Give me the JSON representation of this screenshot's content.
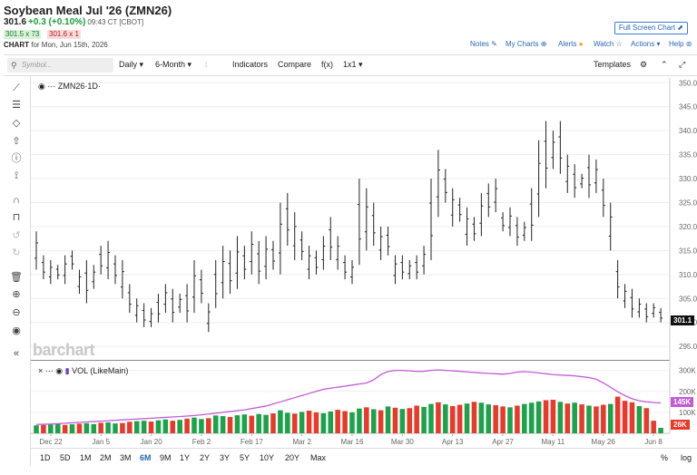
{
  "header": {
    "title": "Soybean Meal Jul '26 (ZMN26)",
    "last": "301.6",
    "change": "+0.3 (+0.10%)",
    "time": "09:43 CT [CBOT]",
    "bid": "301.5 x 73",
    "ask": "301.6 x 1",
    "chart_label": "CHART",
    "chart_date": "for Mon, Jun 15th, 2026",
    "fullscreen": "Full Screen Chart"
  },
  "header_links": {
    "notes": "Notes",
    "mycharts": "My Charts",
    "alerts": "Alerts",
    "watch": "Watch",
    "actions": "Actions",
    "help": "Help"
  },
  "toolbar": {
    "search_placeholder": "Symbol...",
    "daily": "Daily",
    "range": "6-Month",
    "indicators": "Indicators",
    "compare": "Compare",
    "fx": "f(x)",
    "layout": "1x1",
    "templates": "Templates"
  },
  "legend": {
    "symbol": "ZMN26",
    "interval": "1D",
    "volume": "VOL (LikeMain)"
  },
  "logo": "barchart",
  "price_tag": "301.1",
  "vol_tags": {
    "ma": "145K",
    "last": "26K"
  },
  "colors": {
    "up": "#1aa34a",
    "down": "#e8392b",
    "ma": "#c25ad6",
    "neutral": "#3a5fd0"
  },
  "periods": [
    "1D",
    "5D",
    "1M",
    "2M",
    "3M",
    "6M",
    "9M",
    "1Y",
    "2Y",
    "3Y",
    "5Y",
    "10Y",
    "20Y",
    "Max"
  ],
  "bottom_right": {
    "percent": "%",
    "log": "log"
  },
  "chart_data": {
    "type": "bar",
    "style": "ohlc",
    "y_ticks": [
      "350.0",
      "345.0",
      "340.0",
      "335.0",
      "330.0",
      "325.0",
      "320.0",
      "315.0",
      "310.0",
      "305.0",
      "300.0",
      "295.0"
    ],
    "ylim": [
      292,
      351
    ],
    "x_ticks": [
      "Dec 22",
      "Jan 5",
      "Jan 20",
      "Feb 2",
      "Feb 17",
      "Mar 2",
      "Mar 16",
      "Mar 30",
      "Apr 13",
      "Apr 27",
      "May 11",
      "May 26",
      "Jun 8"
    ],
    "volume_ticks": [
      "300K",
      "200K",
      "100K"
    ],
    "volume_ylim": [
      0,
      320
    ],
    "price_hl": [
      [
        319,
        311
      ],
      [
        314,
        309
      ],
      [
        313,
        308
      ],
      [
        312,
        309
      ],
      [
        314,
        308
      ],
      [
        315,
        311
      ],
      [
        311,
        306
      ],
      [
        313,
        304
      ],
      [
        312,
        307
      ],
      [
        316,
        310
      ],
      [
        317,
        309
      ],
      [
        314,
        308
      ],
      [
        313,
        305
      ],
      [
        308,
        302
      ],
      [
        305,
        300
      ],
      [
        304,
        299
      ],
      [
        303,
        299
      ],
      [
        306,
        300
      ],
      [
        308,
        302
      ],
      [
        307,
        300
      ],
      [
        306,
        302
      ],
      [
        308,
        300
      ],
      [
        313,
        302
      ],
      [
        311,
        304
      ],
      [
        304,
        298
      ],
      [
        313,
        303
      ],
      [
        316,
        305
      ],
      [
        315,
        306
      ],
      [
        318,
        307
      ],
      [
        316,
        309
      ],
      [
        319,
        310
      ],
      [
        317,
        308
      ],
      [
        318,
        309
      ],
      [
        317,
        311
      ],
      [
        325,
        310
      ],
      [
        327,
        316
      ],
      [
        323,
        313
      ],
      [
        319,
        313
      ],
      [
        316,
        309
      ],
      [
        315,
        310
      ],
      [
        318,
        311
      ],
      [
        322,
        313
      ],
      [
        318,
        311
      ],
      [
        314,
        309
      ],
      [
        313,
        308
      ],
      [
        330,
        312
      ],
      [
        328,
        315
      ],
      [
        325,
        316
      ],
      [
        320,
        313
      ],
      [
        320,
        314
      ],
      [
        314,
        308
      ],
      [
        314,
        309
      ],
      [
        313,
        309
      ],
      [
        314,
        309
      ],
      [
        316,
        310
      ],
      [
        330,
        313
      ],
      [
        336,
        322
      ],
      [
        332,
        325
      ],
      [
        328,
        320
      ],
      [
        326,
        321
      ],
      [
        324,
        316
      ],
      [
        322,
        317
      ],
      [
        327,
        318
      ],
      [
        329,
        322
      ],
      [
        330,
        323
      ],
      [
        323,
        319
      ],
      [
        324,
        318
      ],
      [
        322,
        316
      ],
      [
        321,
        317
      ],
      [
        328,
        317
      ],
      [
        338,
        322
      ],
      [
        342,
        328
      ],
      [
        340,
        332
      ],
      [
        342,
        331
      ],
      [
        335,
        327
      ],
      [
        333,
        326
      ],
      [
        331,
        328
      ],
      [
        335,
        326
      ],
      [
        334,
        327
      ],
      [
        330,
        322
      ],
      [
        325,
        315
      ],
      [
        313,
        305
      ],
      [
        308,
        303
      ],
      [
        307,
        301
      ],
      [
        305,
        301
      ],
      [
        304,
        300
      ],
      [
        304,
        301
      ],
      [
        303,
        300
      ]
    ],
    "volume": [
      38,
      40,
      42,
      45,
      40,
      43,
      46,
      48,
      44,
      50,
      52,
      47,
      49,
      55,
      58,
      60,
      56,
      62,
      66,
      60,
      64,
      70,
      75,
      68,
      72,
      85,
      82,
      78,
      86,
      90,
      84,
      92,
      88,
      95,
      110,
      98,
      94,
      102,
      108,
      100,
      96,
      104,
      112,
      106,
      100,
      118,
      124,
      115,
      110,
      128,
      122,
      116,
      120,
      132,
      126,
      140,
      148,
      138,
      130,
      136,
      142,
      150,
      146,
      138,
      134,
      128,
      124,
      132,
      140,
      146,
      152,
      158,
      160,
      150,
      142,
      146,
      138,
      132,
      128,
      136,
      140,
      175,
      155,
      148,
      130,
      120,
      60,
      26
    ],
    "volume_ma": [
      42,
      43,
      44,
      46,
      48,
      50,
      52,
      54,
      56,
      58,
      60,
      62,
      64,
      66,
      68,
      70,
      72,
      74,
      76,
      78,
      80,
      82,
      85,
      88,
      92,
      96,
      100,
      104,
      108,
      112,
      118,
      124,
      130,
      140,
      150,
      160,
      170,
      180,
      190,
      200,
      210,
      215,
      220,
      225,
      230,
      235,
      240,
      255,
      280,
      295,
      300,
      300,
      298,
      295,
      296,
      300,
      302,
      300,
      298,
      296,
      293,
      290,
      288,
      286,
      284,
      282,
      286,
      292,
      294,
      292,
      288,
      284,
      280,
      278,
      276,
      274,
      270,
      266,
      258,
      240,
      220,
      198,
      180,
      165,
      155,
      150,
      147,
      145
    ],
    "volume_up": [
      true,
      false,
      true,
      true,
      false,
      true,
      false,
      true,
      true,
      false,
      true,
      true,
      false,
      false,
      true,
      true,
      false,
      true,
      true,
      false,
      true,
      false,
      true,
      true,
      false,
      true,
      true,
      false,
      true,
      true,
      false,
      true,
      true,
      false,
      true,
      true,
      false,
      true,
      false,
      false,
      true,
      true,
      false,
      false,
      true,
      true,
      false,
      true,
      false,
      true,
      false,
      true,
      false,
      false,
      true,
      true,
      false,
      true,
      false,
      false,
      true,
      false,
      true,
      true,
      false,
      false,
      true,
      false,
      true,
      true,
      true,
      false,
      false,
      true,
      false,
      true,
      false,
      true,
      false,
      false,
      true,
      false,
      false,
      false,
      true,
      false,
      false,
      true
    ]
  }
}
